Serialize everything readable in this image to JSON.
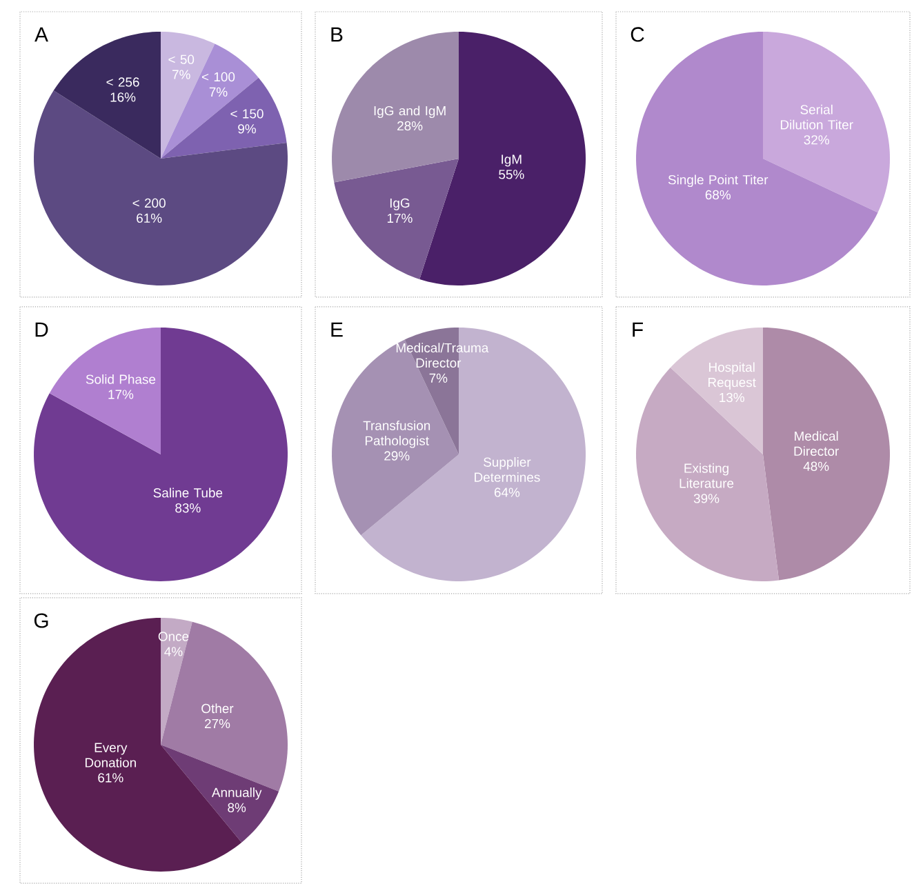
{
  "chart_data": [
    {
      "type": "pie",
      "title": "A",
      "categories": [
        "< 50",
        "< 100",
        "< 150",
        "< 200",
        "< 256"
      ],
      "values": [
        7,
        7,
        9,
        61,
        16
      ],
      "value_labels": [
        "7%",
        "7%",
        "9%",
        "61%",
        "16%"
      ],
      "colors": [
        "#c9b8e0",
        "#a98fd6",
        "#7e62b0",
        "#5c4a82",
        "#3a2a5e"
      ]
    },
    {
      "type": "pie",
      "title": "B",
      "categories": [
        "IgM",
        "IgG",
        "IgG and IgM"
      ],
      "values": [
        55,
        17,
        28
      ],
      "value_labels": [
        "55%",
        "17%",
        "28%"
      ],
      "colors": [
        "#4a2068",
        "#785a92",
        "#9d8aab"
      ]
    },
    {
      "type": "pie",
      "title": "C",
      "categories": [
        "Serial Dilution Titer",
        "Single Point Titer"
      ],
      "values": [
        32,
        68
      ],
      "value_labels": [
        "32%",
        "68%"
      ],
      "colors": [
        "#c9a8dc",
        "#b089cc"
      ]
    },
    {
      "type": "pie",
      "title": "D",
      "categories": [
        "Saline Tube",
        "Solid Phase"
      ],
      "values": [
        83,
        17
      ],
      "value_labels": [
        "83%",
        "17%"
      ],
      "colors": [
        "#703b92",
        "#b07fd0"
      ]
    },
    {
      "type": "pie",
      "title": "E",
      "categories": [
        "Supplier Determines",
        "Transfusion Pathologist",
        "Medical/Trauma Director"
      ],
      "values": [
        64,
        29,
        7
      ],
      "value_labels": [
        "64%",
        "29%",
        "7%"
      ],
      "colors": [
        "#c2b3cf",
        "#a591b3",
        "#8b7598"
      ]
    },
    {
      "type": "pie",
      "title": "F",
      "categories": [
        "Medical Director",
        "Existing Literature",
        "Hospital Request"
      ],
      "values": [
        48,
        39,
        13
      ],
      "value_labels": [
        "48%",
        "39%",
        "13%"
      ],
      "colors": [
        "#ae8ba8",
        "#c6aac3",
        "#dac6d6"
      ]
    },
    {
      "type": "pie",
      "title": "G",
      "categories": [
        "Once",
        "Other",
        "Annually",
        "Every Donation"
      ],
      "values": [
        4,
        27,
        8,
        61
      ],
      "value_labels": [
        "4%",
        "27%",
        "8%",
        "61%"
      ],
      "colors": [
        "#c3aac5",
        "#a07ba5",
        "#6e3c75",
        "#5a1f52"
      ]
    }
  ]
}
